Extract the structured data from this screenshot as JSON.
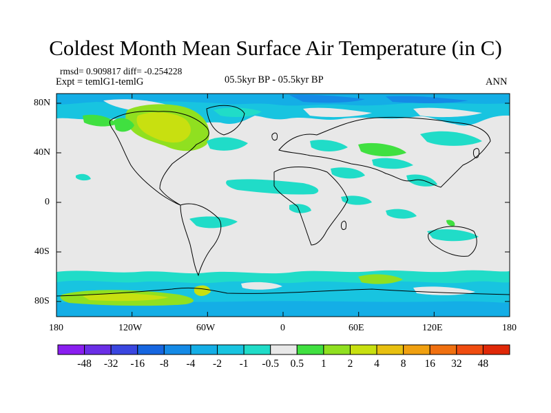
{
  "title": "Coldest Month Mean Surface Air Temperature (in C)",
  "stats": {
    "rmsd": "rmsd= 0.909817",
    "diff": "diff= -0.254228"
  },
  "expt": "Expt = temlG1-temlG",
  "period": "05.5kyr BP - 05.5kyr BP",
  "season": "ANN",
  "map": {
    "projection": "cylindrical equidistant",
    "ocean_land_background": "#e8e8e8",
    "lat_labels": [
      "80N",
      "40N",
      "0",
      "40S",
      "80S"
    ],
    "lon_labels": [
      "180",
      "120W",
      "60W",
      "0",
      "60E",
      "120E",
      "180"
    ]
  },
  "colorbar": {
    "colors": [
      "#8a1ef0",
      "#6a2ee6",
      "#3a46e0",
      "#1666e0",
      "#148ae6",
      "#14aee6",
      "#18c4e0",
      "#20dcc8",
      "#e8e8e8",
      "#40e040",
      "#90e020",
      "#c8e010",
      "#e8c010",
      "#f0a010",
      "#f07010",
      "#f04c10",
      "#e02808"
    ],
    "labels": [
      "-48",
      "-32",
      "-16",
      "-8",
      "-4",
      "-2",
      "-1",
      "-0.5",
      "0.5",
      "1",
      "2",
      "4",
      "8",
      "16",
      "32",
      "48"
    ]
  },
  "legend_colors": {
    "neutral": "#e8e8e8",
    "slight_cool": "#20dcc8",
    "cool": "#18c4e0",
    "cooler": "#14aee6",
    "cold": "#148ae6",
    "slight_warm": "#40e040",
    "warm": "#90e020",
    "warmer": "#c8e010"
  }
}
